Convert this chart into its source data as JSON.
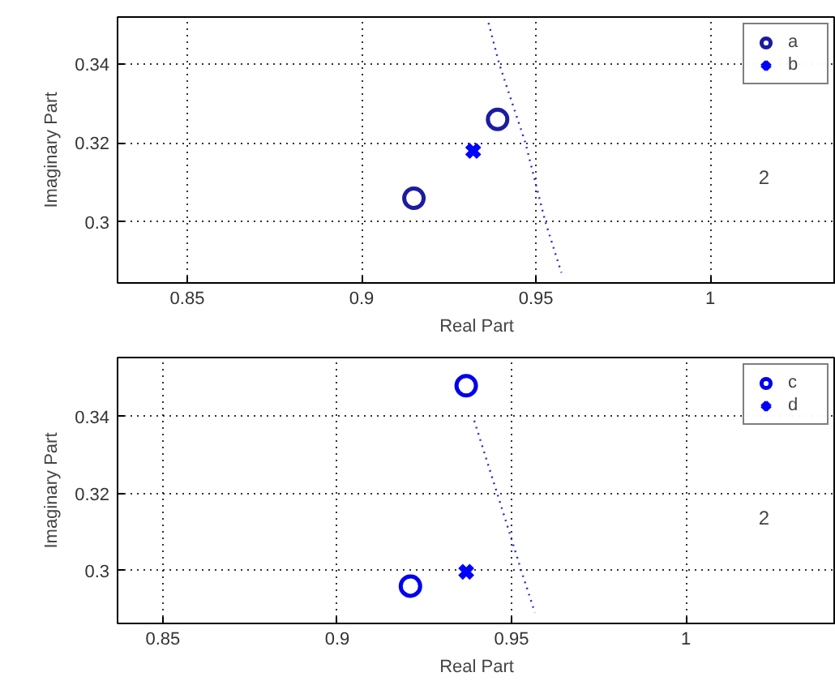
{
  "chart_data": [
    {
      "type": "scatter",
      "xlabel": "Real Part",
      "ylabel": "Imaginary Part",
      "xlim": [
        0.83,
        1.036
      ],
      "ylim": [
        0.2845,
        0.352
      ],
      "xticks": [
        0.85,
        0.9,
        0.95,
        1
      ],
      "yticks": [
        0.3,
        0.32,
        0.34
      ],
      "grid": true,
      "legend": "top right",
      "series": [
        {
          "name": "a",
          "color": "#1c1ca0",
          "marker": "circle",
          "x": [
            0.915,
            0.939
          ],
          "values": [
            0.306,
            0.326
          ]
        },
        {
          "name": "b",
          "color": "#0000ff",
          "marker": "cross",
          "x": [
            0.932
          ],
          "values": [
            0.318
          ]
        },
        {
          "type": "line",
          "color": "#2a2ad0",
          "line_style": "dotted",
          "marker": "none",
          "x": [
            0.9364,
            0.9395,
            0.947,
            0.9527,
            0.9573
          ],
          "values": [
            0.3505,
            0.34,
            0.32,
            0.3,
            0.2871
          ]
        }
      ],
      "annotations": [
        "2"
      ]
    },
    {
      "type": "scatter",
      "xlabel": "Real Part",
      "ylabel": "Imaginary Part",
      "xlim": [
        0.837,
        1.043
      ],
      "ylim": [
        0.2863,
        0.3553
      ],
      "xticks": [
        0.85,
        0.9,
        0.95,
        1
      ],
      "yticks": [
        0.3,
        0.32,
        0.34
      ],
      "grid": true,
      "legend": "top right",
      "series": [
        {
          "name": "c",
          "color": "#0000ee",
          "marker": "circle",
          "x": [
            0.937,
            0.921
          ],
          "values": [
            0.348,
            0.296
          ]
        },
        {
          "name": "d",
          "color": "#0000ff",
          "marker": "cross",
          "x": [
            0.937
          ],
          "values": [
            0.2997
          ]
        },
        {
          "type": "line",
          "color": "#2a2ad0",
          "line_style": "dotted",
          "marker": "none",
          "x": [
            0.9393,
            0.9459,
            0.9528,
            0.9567
          ],
          "values": [
            0.3389,
            0.32,
            0.3,
            0.2891
          ]
        }
      ],
      "annotations": [
        "2"
      ]
    }
  ]
}
